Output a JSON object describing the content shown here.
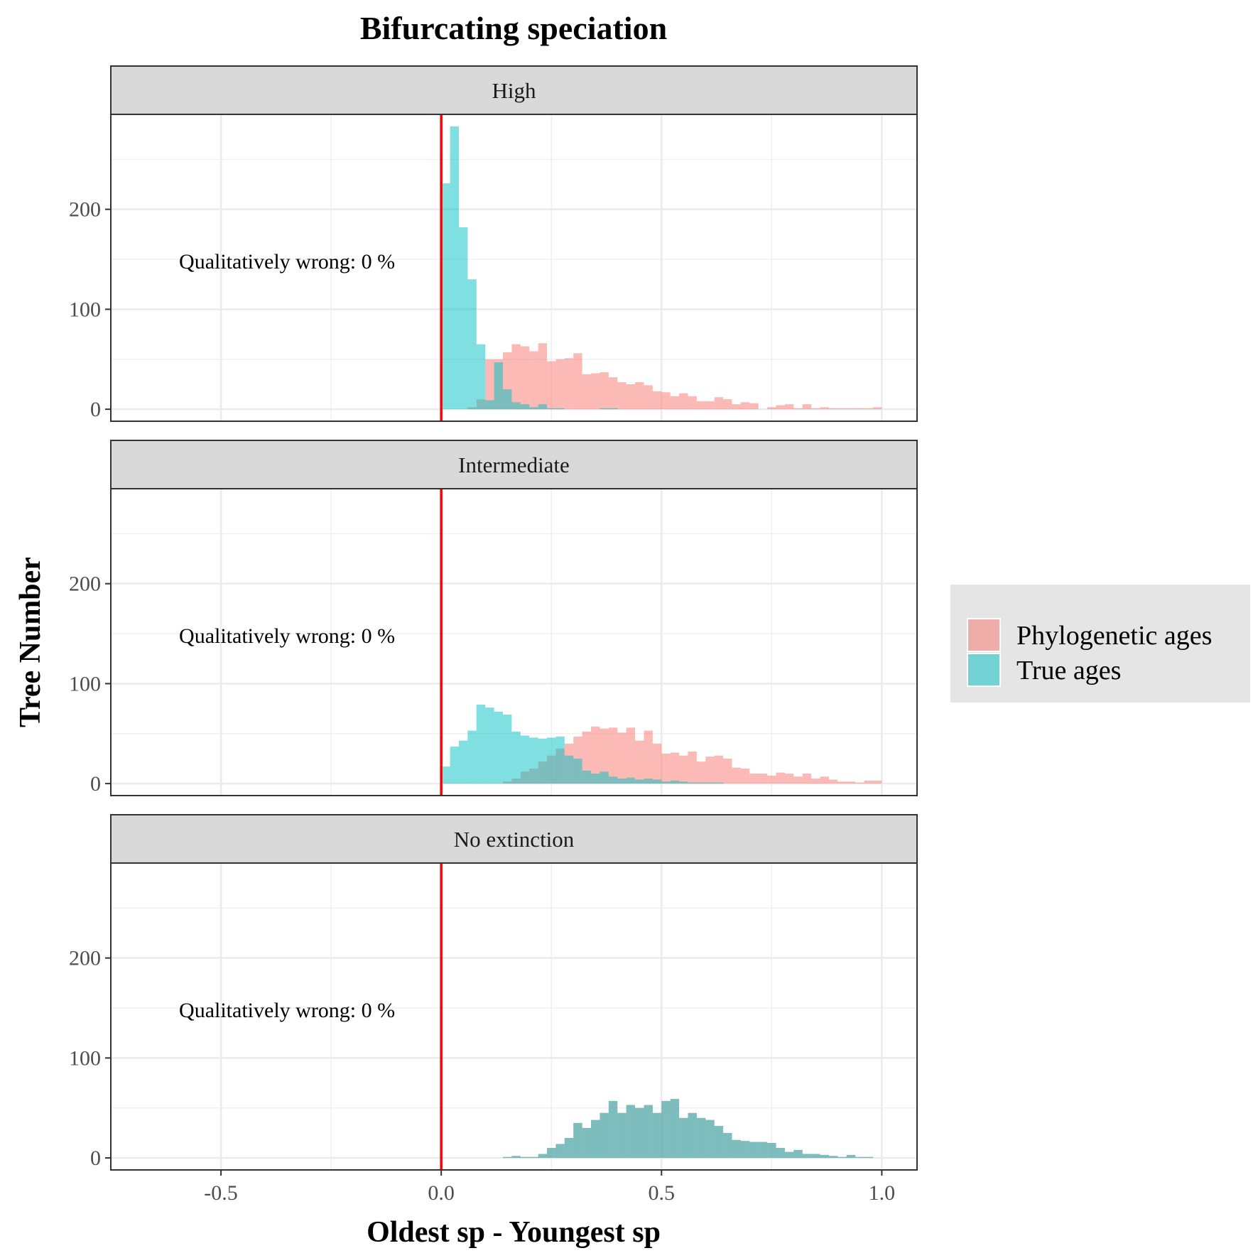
{
  "chart_data": {
    "type": "bar",
    "title": "Bifurcating speciation",
    "xlabel": "Oldest sp - Youngest sp",
    "ylabel": "Tree Number",
    "xlim": [
      -0.75,
      1.08
    ],
    "ylim": [
      -12,
      295
    ],
    "x_ticks": [
      -0.5,
      0.0,
      0.5,
      1.0
    ],
    "x_tick_labels": [
      "-0.5",
      "0.0",
      "0.5",
      "1.0"
    ],
    "y_ticks": [
      0,
      100,
      200
    ],
    "y_tick_labels": [
      "0",
      "100",
      "200"
    ],
    "grid": true,
    "bin_width": 0.02,
    "reference_line": {
      "x": 0,
      "color": "#ff0000"
    },
    "colors": {
      "phylogenetic": "#f8766d",
      "true": "#00bfc4"
    },
    "legend": {
      "position": "right",
      "entries": [
        "Phylogenetic ages",
        "True ages"
      ]
    },
    "panels": [
      {
        "label": "High",
        "annotation": "Qualitatively wrong: 0 %",
        "series": [
          {
            "name": "Phylogenetic ages",
            "x": [
              0.01,
              0.03,
              0.05,
              0.07,
              0.09,
              0.11,
              0.13,
              0.15,
              0.17,
              0.19,
              0.21,
              0.23,
              0.25,
              0.27,
              0.29,
              0.31,
              0.33,
              0.35,
              0.37,
              0.39,
              0.41,
              0.43,
              0.45,
              0.47,
              0.49,
              0.51,
              0.53,
              0.55,
              0.57,
              0.59,
              0.61,
              0.63,
              0.65,
              0.67,
              0.69,
              0.71,
              0.73,
              0.75,
              0.77,
              0.79,
              0.81,
              0.83,
              0.85,
              0.87,
              0.89,
              0.91,
              0.93,
              0.95,
              0.97,
              0.99
            ],
            "values": [
              0,
              0,
              0,
              2,
              10,
              50,
              50,
              57,
              65,
              63,
              58,
              66,
              48,
              50,
              51,
              56,
              35,
              36,
              37,
              32,
              27,
              25,
              27,
              24,
              18,
              17,
              13,
              16,
              13,
              8,
              8,
              12,
              10,
              5,
              7,
              6,
              0,
              2,
              4,
              5,
              1,
              5,
              1,
              2,
              1,
              1,
              1,
              1,
              1,
              2
            ]
          },
          {
            "name": "True ages",
            "x": [
              0.01,
              0.03,
              0.05,
              0.07,
              0.09,
              0.11,
              0.13,
              0.15,
              0.17,
              0.19,
              0.21,
              0.23,
              0.25,
              0.27,
              0.29,
              0.31,
              0.33,
              0.35,
              0.37,
              0.39,
              0.41,
              0.43,
              0.45,
              0.47,
              0.49,
              0.51,
              0.53,
              0.55,
              0.57,
              0.59,
              0.61,
              0.63,
              0.65,
              0.67,
              0.69,
              0.71,
              0.73,
              0.75,
              0.77,
              0.79,
              0.81,
              0.83,
              0.85,
              0.87,
              0.89,
              0.91,
              0.93,
              0.95,
              0.97,
              0.99
            ],
            "values": [
              226,
              283,
              182,
              130,
              65,
              9,
              47,
              20,
              7,
              5,
              2,
              5,
              1,
              1,
              0,
              0,
              0,
              0,
              1,
              1,
              0,
              0,
              0,
              0,
              0,
              0,
              0,
              0,
              0,
              0,
              0,
              0,
              0,
              0,
              0,
              0,
              0,
              0,
              0,
              0,
              0,
              0,
              0,
              0,
              0,
              0,
              0,
              0,
              0,
              0
            ]
          }
        ]
      },
      {
        "label": "Intermediate",
        "annotation": "Qualitatively wrong: 0 %",
        "series": [
          {
            "name": "Phylogenetic ages",
            "x": [
              0.01,
              0.03,
              0.05,
              0.07,
              0.09,
              0.11,
              0.13,
              0.15,
              0.17,
              0.19,
              0.21,
              0.23,
              0.25,
              0.27,
              0.29,
              0.31,
              0.33,
              0.35,
              0.37,
              0.39,
              0.41,
              0.43,
              0.45,
              0.47,
              0.49,
              0.51,
              0.53,
              0.55,
              0.57,
              0.59,
              0.61,
              0.63,
              0.65,
              0.67,
              0.69,
              0.71,
              0.73,
              0.75,
              0.77,
              0.79,
              0.81,
              0.83,
              0.85,
              0.87,
              0.89,
              0.91,
              0.93,
              0.95,
              0.97,
              0.99
            ],
            "values": [
              0,
              0,
              0,
              0,
              0,
              0,
              0,
              2,
              5,
              12,
              15,
              22,
              28,
              35,
              40,
              47,
              52,
              57,
              55,
              56,
              51,
              56,
              43,
              53,
              40,
              30,
              31,
              28,
              32,
              22,
              27,
              28,
              25,
              16,
              15,
              10,
              10,
              8,
              11,
              10,
              7,
              10,
              5,
              7,
              4,
              2,
              2,
              1,
              3,
              3
            ]
          },
          {
            "name": "True ages",
            "x": [
              0.01,
              0.03,
              0.05,
              0.07,
              0.09,
              0.11,
              0.13,
              0.15,
              0.17,
              0.19,
              0.21,
              0.23,
              0.25,
              0.27,
              0.29,
              0.31,
              0.33,
              0.35,
              0.37,
              0.39,
              0.41,
              0.43,
              0.45,
              0.47,
              0.49,
              0.51,
              0.53,
              0.55,
              0.57,
              0.59,
              0.61,
              0.63,
              0.65,
              0.67,
              0.69,
              0.71,
              0.73,
              0.75,
              0.77,
              0.79,
              0.81,
              0.83,
              0.85,
              0.87,
              0.89,
              0.91,
              0.93,
              0.95,
              0.97,
              0.99
            ],
            "values": [
              17,
              37,
              43,
              53,
              79,
              76,
              72,
              69,
              52,
              48,
              46,
              45,
              46,
              47,
              28,
              25,
              13,
              10,
              12,
              7,
              5,
              6,
              4,
              5,
              4,
              2,
              3,
              2,
              1,
              1,
              1,
              1,
              0,
              0,
              0,
              0,
              0,
              0,
              0,
              0,
              0,
              0,
              0,
              0,
              0,
              0,
              0,
              0,
              0,
              0
            ]
          }
        ]
      },
      {
        "label": "No extinction",
        "annotation": "Qualitatively wrong: 0 %",
        "series": [
          {
            "name": "Phylogenetic ages",
            "x": [
              0.15,
              0.17,
              0.19,
              0.21,
              0.23,
              0.25,
              0.27,
              0.29,
              0.31,
              0.33,
              0.35,
              0.37,
              0.39,
              0.41,
              0.43,
              0.45,
              0.47,
              0.49,
              0.51,
              0.53,
              0.55,
              0.57,
              0.59,
              0.61,
              0.63,
              0.65,
              0.67,
              0.69,
              0.71,
              0.73,
              0.75,
              0.77,
              0.79,
              0.81,
              0.83,
              0.85,
              0.87,
              0.89,
              0.91,
              0.93,
              0.95,
              0.97
            ],
            "values": [
              1,
              2,
              1,
              1,
              4,
              10,
              14,
              20,
              35,
              30,
              38,
              45,
              57,
              45,
              53,
              50,
              53,
              45,
              57,
              59,
              40,
              45,
              40,
              38,
              32,
              25,
              18,
              17,
              16,
              16,
              15,
              10,
              6,
              8,
              4,
              4,
              3,
              2,
              1,
              3,
              1,
              1
            ]
          },
          {
            "name": "True ages",
            "x": [
              0.15,
              0.17,
              0.19,
              0.21,
              0.23,
              0.25,
              0.27,
              0.29,
              0.31,
              0.33,
              0.35,
              0.37,
              0.39,
              0.41,
              0.43,
              0.45,
              0.47,
              0.49,
              0.51,
              0.53,
              0.55,
              0.57,
              0.59,
              0.61,
              0.63,
              0.65,
              0.67,
              0.69,
              0.71,
              0.73,
              0.75,
              0.77,
              0.79,
              0.81,
              0.83,
              0.85,
              0.87,
              0.89,
              0.91,
              0.93,
              0.95,
              0.97
            ],
            "values": [
              1,
              2,
              1,
              1,
              4,
              10,
              14,
              20,
              35,
              30,
              38,
              45,
              57,
              45,
              53,
              50,
              53,
              45,
              57,
              59,
              40,
              45,
              40,
              38,
              32,
              25,
              18,
              17,
              16,
              16,
              15,
              10,
              6,
              8,
              4,
              4,
              3,
              2,
              1,
              3,
              1,
              1
            ]
          }
        ]
      }
    ]
  }
}
